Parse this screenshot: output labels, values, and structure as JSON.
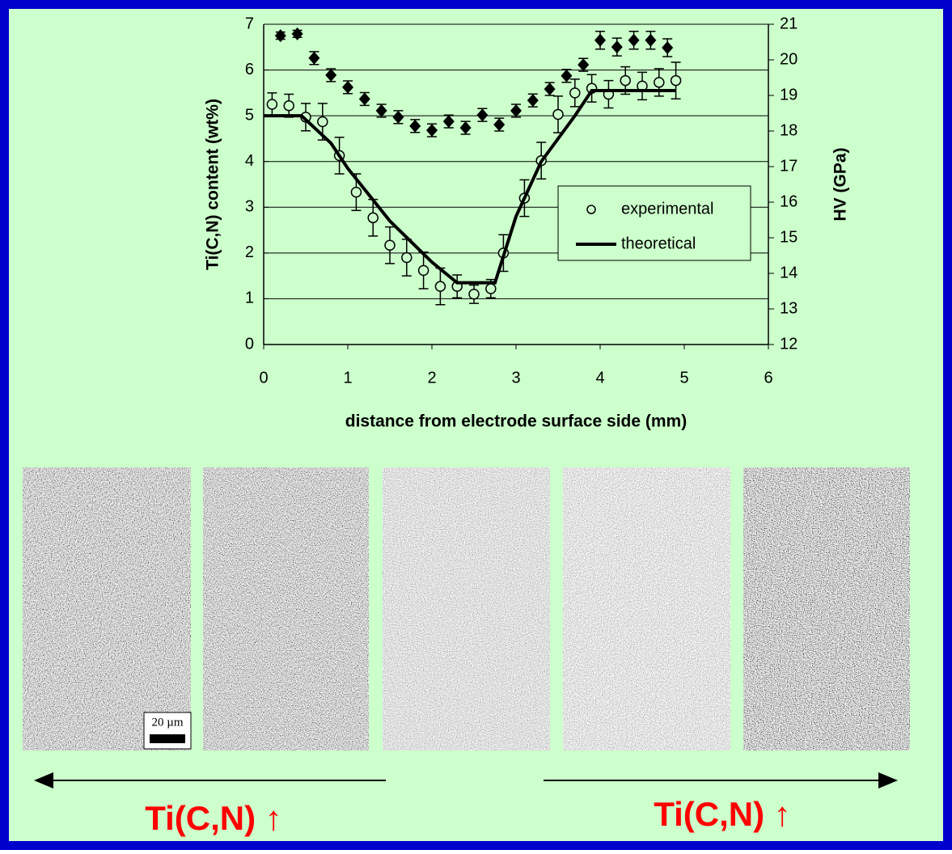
{
  "chart_data": {
    "type": "scatter",
    "xlabel": "distance from electrode surface side (mm)",
    "ylabel": "Ti(C,N) content (wt%)",
    "y2label": "HV (GPa)",
    "xlim": [
      0,
      6
    ],
    "xticks": [
      0,
      1,
      2,
      3,
      4,
      5,
      6
    ],
    "ylim": [
      0,
      7
    ],
    "yticks": [
      0,
      1,
      2,
      3,
      4,
      5,
      6,
      7
    ],
    "y2lim": [
      12,
      21
    ],
    "y2ticks": [
      12,
      13,
      14,
      15,
      16,
      17,
      18,
      19,
      20,
      21
    ],
    "grid": true,
    "legend": "right",
    "series": [
      {
        "name": "experimental",
        "marker": "circle",
        "color": "#000000",
        "x": [
          0.1,
          0.3,
          0.5,
          0.7,
          0.9,
          1.1,
          1.3,
          1.5,
          1.7,
          1.9,
          2.1,
          2.3,
          2.5,
          2.7,
          2.85,
          3.1,
          3.3,
          3.5,
          3.7,
          3.9,
          4.1,
          4.3,
          4.5,
          4.7,
          4.9
        ],
        "values": [
          5.25,
          5.22,
          4.97,
          4.87,
          4.13,
          3.33,
          2.77,
          2.17,
          1.9,
          1.62,
          1.27,
          1.27,
          1.1,
          1.22,
          2.0,
          3.2,
          4.02,
          5.03,
          5.5,
          5.6,
          5.47,
          5.77,
          5.65,
          5.73,
          5.77
        ],
        "errors": [
          0.25,
          0.25,
          0.3,
          0.4,
          0.4,
          0.4,
          0.4,
          0.4,
          0.4,
          0.4,
          0.4,
          0.25,
          0.2,
          0.2,
          0.4,
          0.4,
          0.4,
          0.4,
          0.3,
          0.3,
          0.3,
          0.3,
          0.3,
          0.3,
          0.4
        ]
      },
      {
        "name": "theoretical",
        "marker": "line",
        "color": "#000000",
        "x": [
          0,
          0.45,
          0.8,
          1.0,
          1.5,
          2.0,
          2.3,
          2.75,
          3.0,
          3.3,
          3.7,
          3.9,
          4.9
        ],
        "values": [
          5.0,
          5.0,
          4.4,
          3.85,
          2.7,
          1.8,
          1.35,
          1.35,
          2.8,
          4.0,
          5.0,
          5.55,
          5.55
        ]
      },
      {
        "marker": "diamond",
        "color": "#000000",
        "axis": "y2",
        "x": [
          0.2,
          0.4,
          0.6,
          0.8,
          1.0,
          1.2,
          1.4,
          1.6,
          1.8,
          2.0,
          2.2,
          2.4,
          2.6,
          2.8,
          3.0,
          3.2,
          3.4,
          3.6,
          3.8,
          4.0,
          4.2,
          4.4,
          4.6,
          4.8
        ],
        "values": [
          20.68,
          20.73,
          20.05,
          19.57,
          19.23,
          18.9,
          18.57,
          18.39,
          18.14,
          18.02,
          18.27,
          18.09,
          18.45,
          18.18,
          18.57,
          18.86,
          19.18,
          19.55,
          19.86,
          20.55,
          20.36,
          20.55,
          20.55,
          20.34
        ],
        "errors": [
          0.1,
          0.1,
          0.18,
          0.18,
          0.18,
          0.18,
          0.18,
          0.18,
          0.18,
          0.18,
          0.18,
          0.18,
          0.18,
          0.18,
          0.18,
          0.18,
          0.18,
          0.18,
          0.18,
          0.25,
          0.25,
          0.25,
          0.25,
          0.25
        ]
      }
    ]
  },
  "annotations": {
    "scale_bar": "20 µm",
    "left_arrow": "Ti(C,N) ↑",
    "right_arrow": "Ti(C,N) ↑"
  }
}
